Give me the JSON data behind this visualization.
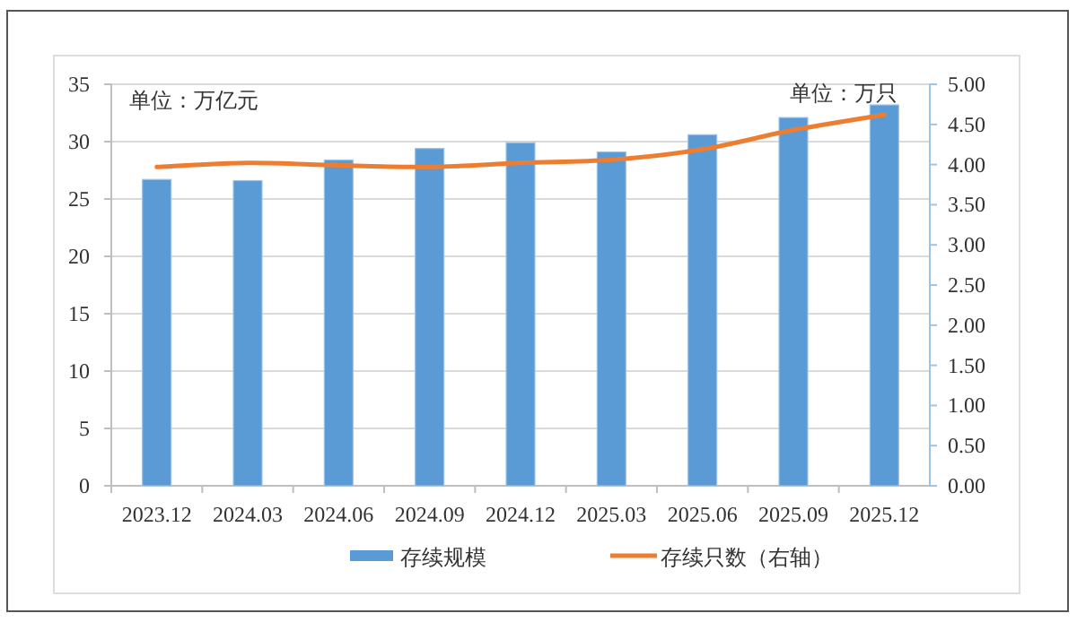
{
  "chart_data": {
    "type": "bar",
    "ylabel": "单位：万亿元",
    "y2label": "单位：万只",
    "categories": [
      "2023.12",
      "2024.03",
      "2024.06",
      "2024.09",
      "2024.12",
      "2025.03",
      "2025.06",
      "2025.09",
      "2025.12"
    ],
    "series": [
      {
        "name": "存续规模",
        "color": "#5b9bd5",
        "values": [
          26.7,
          26.6,
          28.4,
          29.4,
          29.9,
          29.1,
          30.6,
          32.1,
          33.2
        ]
      },
      {
        "name": "存续只数（右轴）",
        "type": "line",
        "axis": "y2",
        "color": "#ed7d31",
        "values": [
          3.97,
          4.02,
          3.99,
          3.97,
          4.02,
          4.06,
          4.19,
          4.43,
          4.62
        ]
      }
    ],
    "ylim": [
      0,
      35
    ],
    "yticks": [
      0,
      5,
      10,
      15,
      20,
      25,
      30,
      35
    ],
    "y2lim": [
      0,
      5
    ],
    "y2ticks": [
      {
        "value": 0,
        "label": "0.00"
      },
      {
        "value": 0.5,
        "label": "0.50"
      },
      {
        "value": 1,
        "label": "1.00"
      },
      {
        "value": 1.5,
        "label": "1.50"
      },
      {
        "value": 2,
        "label": "2.00"
      },
      {
        "value": 2.5,
        "label": "2.50"
      },
      {
        "value": 3,
        "label": "3.00"
      },
      {
        "value": 3.5,
        "label": "3.50"
      },
      {
        "value": 4,
        "label": "4.00"
      },
      {
        "value": 4.5,
        "label": "4.50"
      },
      {
        "value": 5,
        "label": "5.00"
      }
    ],
    "grid": "y",
    "legend": "bottom"
  }
}
